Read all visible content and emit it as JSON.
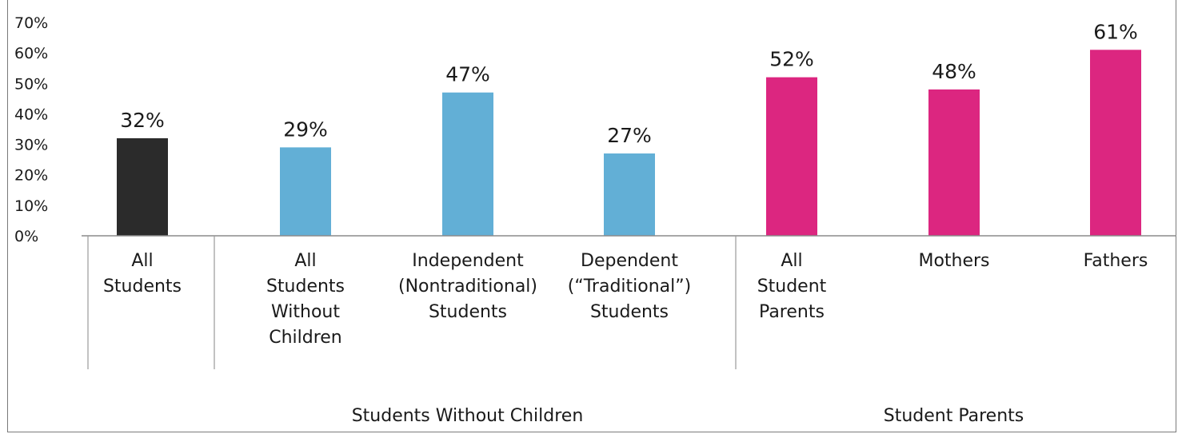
{
  "chart_data": {
    "type": "bar",
    "title": "",
    "xlabel": "",
    "ylabel": "",
    "ylim": [
      0,
      70
    ],
    "y_ticks": [
      "0%",
      "10%",
      "20%",
      "30%",
      "40%",
      "50%",
      "60%",
      "70%"
    ],
    "grid": false,
    "categories": [
      [
        "All",
        "Students"
      ],
      [
        "All",
        "Students",
        "Without",
        "Children"
      ],
      [
        "Independent",
        "(Nontraditional)",
        "Students"
      ],
      [
        "Dependent",
        "(“Traditional”)",
        "Students"
      ],
      [
        "All",
        "Student",
        "Parents"
      ],
      [
        "Mothers"
      ],
      [
        "Fathers"
      ]
    ],
    "values": [
      32,
      29,
      47,
      27,
      52,
      48,
      61
    ],
    "data_labels": [
      "32%",
      "29%",
      "47%",
      "27%",
      "52%",
      "48%",
      "61%"
    ],
    "bar_colors": [
      "#2b2b2b",
      "#62afd6",
      "#62afd6",
      "#62afd6",
      "#dc2680",
      "#dc2680",
      "#dc2680"
    ],
    "groups": [
      {
        "label": "",
        "categories": [
          0
        ]
      },
      {
        "label": "Students Without Children",
        "categories": [
          1,
          2,
          3
        ]
      },
      {
        "label": "Student Parents",
        "categories": [
          4,
          5,
          6
        ]
      }
    ]
  }
}
